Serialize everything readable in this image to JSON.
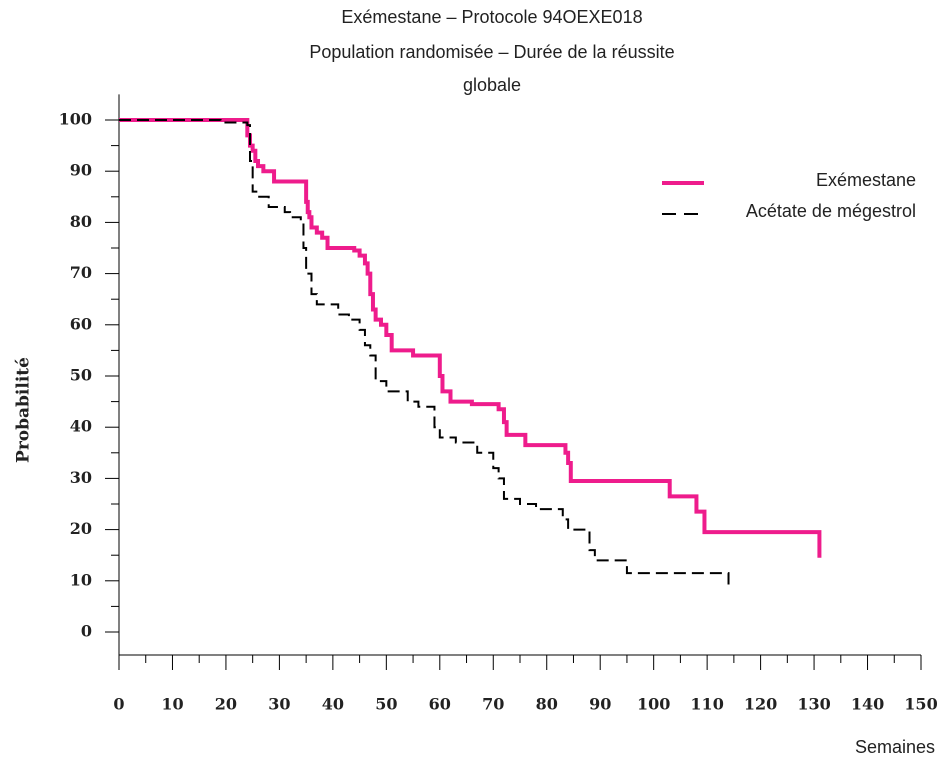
{
  "chart_data": {
    "type": "line",
    "step": "post",
    "title": [
      "Exémestane – Protocole 94OEXE018",
      "Population randomisée – Durée de la réussite",
      "globale"
    ],
    "y_label": "Probabilité",
    "x_label": "Semaines",
    "xlim": [
      0,
      150
    ],
    "xticks": [
      0,
      10,
      20,
      30,
      40,
      50,
      60,
      70,
      80,
      90,
      100,
      110,
      120,
      130,
      140,
      150
    ],
    "x_minor_ticks": [
      5,
      15,
      25,
      35,
      45,
      55,
      65,
      75,
      85,
      95,
      105,
      115,
      125,
      135,
      145
    ],
    "ylim": [
      -5,
      105
    ],
    "yticks": [
      0,
      10,
      20,
      30,
      40,
      50,
      60,
      70,
      80,
      90,
      100
    ],
    "y_minor_ticks": [
      5,
      15,
      25,
      35,
      45,
      55,
      65,
      75,
      85,
      95
    ],
    "legend": "upper right",
    "series": [
      {
        "name": "Exémestane",
        "color": "#ee1c8c",
        "style": "solid",
        "x": [
          0,
          24,
          24.5,
          25,
          25.5,
          26,
          27,
          29,
          35,
          35.3,
          35.6,
          36,
          37,
          38,
          39,
          44,
          45,
          46,
          46.5,
          47,
          47.5,
          48,
          49,
          50,
          51,
          55,
          60,
          60.5,
          62,
          66,
          71,
          72,
          72.5,
          76,
          83,
          83.5,
          84,
          84.5,
          103,
          108,
          109.5,
          131
        ],
        "values": [
          100,
          97,
          95,
          94,
          92,
          91,
          90,
          88,
          84,
          82,
          81,
          79,
          78,
          77,
          75,
          74.5,
          73.5,
          72,
          70,
          66,
          63,
          61,
          60,
          58,
          55,
          54,
          50,
          47,
          45,
          44.5,
          43.5,
          41,
          38.5,
          36.5,
          36.5,
          35,
          33,
          29.5,
          26.5,
          23.5,
          19.5,
          14.5
        ]
      },
      {
        "name": "Acétate de mégestrol",
        "color": "#000000",
        "style": "dashed",
        "x": [
          0,
          19,
          24,
          24.5,
          25,
          26,
          28,
          31,
          32,
          34,
          34.5,
          35,
          36,
          37,
          41,
          43,
          45,
          46,
          47,
          48,
          50,
          54,
          56,
          59,
          60,
          63,
          67,
          70,
          71,
          72,
          75,
          78,
          83,
          84,
          88,
          89,
          95,
          114
        ],
        "values": [
          100,
          99.5,
          99,
          92,
          86,
          85,
          83,
          82,
          81,
          80,
          75,
          70,
          66,
          64,
          62,
          61,
          59,
          56,
          54,
          49,
          47,
          45,
          44,
          40,
          38,
          37,
          35,
          32,
          30,
          26,
          25,
          24,
          22,
          20,
          16,
          14,
          11.5,
          9
        ]
      }
    ]
  }
}
